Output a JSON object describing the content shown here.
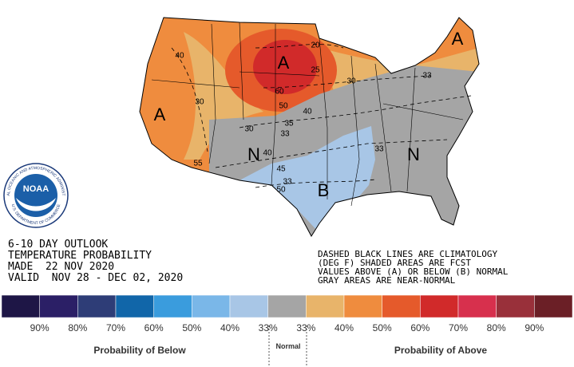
{
  "header": {
    "lines": [
      "6-10 DAY OUTLOOK",
      "TEMPERATURE PROBABILITY",
      "MADE  22 NOV 2020",
      "VALID  NOV 28 - DEC 02, 2020"
    ]
  },
  "notes": [
    "DASHED BLACK LINES ARE CLIMATOLOGY",
    "(DEG F) SHADED AREAS ARE FCST",
    "VALUES ABOVE (A) OR BELOW (B) NORMAL",
    "GRAY AREAS ARE NEAR-NORMAL"
  ],
  "logo": {
    "name": "NOAA",
    "ring_top": "NATIONAL OCEANIC AND ATMOSPHERIC ADMINISTRATION",
    "ring_bottom": "U.S. DEPARTMENT OF COMMERCE"
  },
  "map": {
    "letters": [
      "A",
      "A",
      "A",
      "N",
      "N",
      "B"
    ],
    "labels": [
      "40",
      "30",
      "55",
      "60",
      "50",
      "40",
      "35",
      "30",
      "33",
      "40",
      "45",
      "33",
      "50",
      "30",
      "33",
      "33",
      "25",
      "20"
    ]
  },
  "legend": {
    "colors": [
      "#1e1646",
      "#2b1f66",
      "#2e3d77",
      "#1166a9",
      "#3a9cdd",
      "#7ab7e8",
      "#a8c6e6",
      "#a5a5a5",
      "#e8b46a",
      "#ef8c3e",
      "#e55a2b",
      "#d12a2a",
      "#d7304d",
      "#99303a",
      "#6b1f26"
    ],
    "below": [
      "90%",
      "80%",
      "70%",
      "60%",
      "50%",
      "40%",
      "33%"
    ],
    "above": [
      "33%",
      "40%",
      "50%",
      "60%",
      "70%",
      "80%",
      "90%"
    ],
    "below_title": "Probability of Below",
    "normal_title": "Normal",
    "above_title": "Probability of Above"
  }
}
